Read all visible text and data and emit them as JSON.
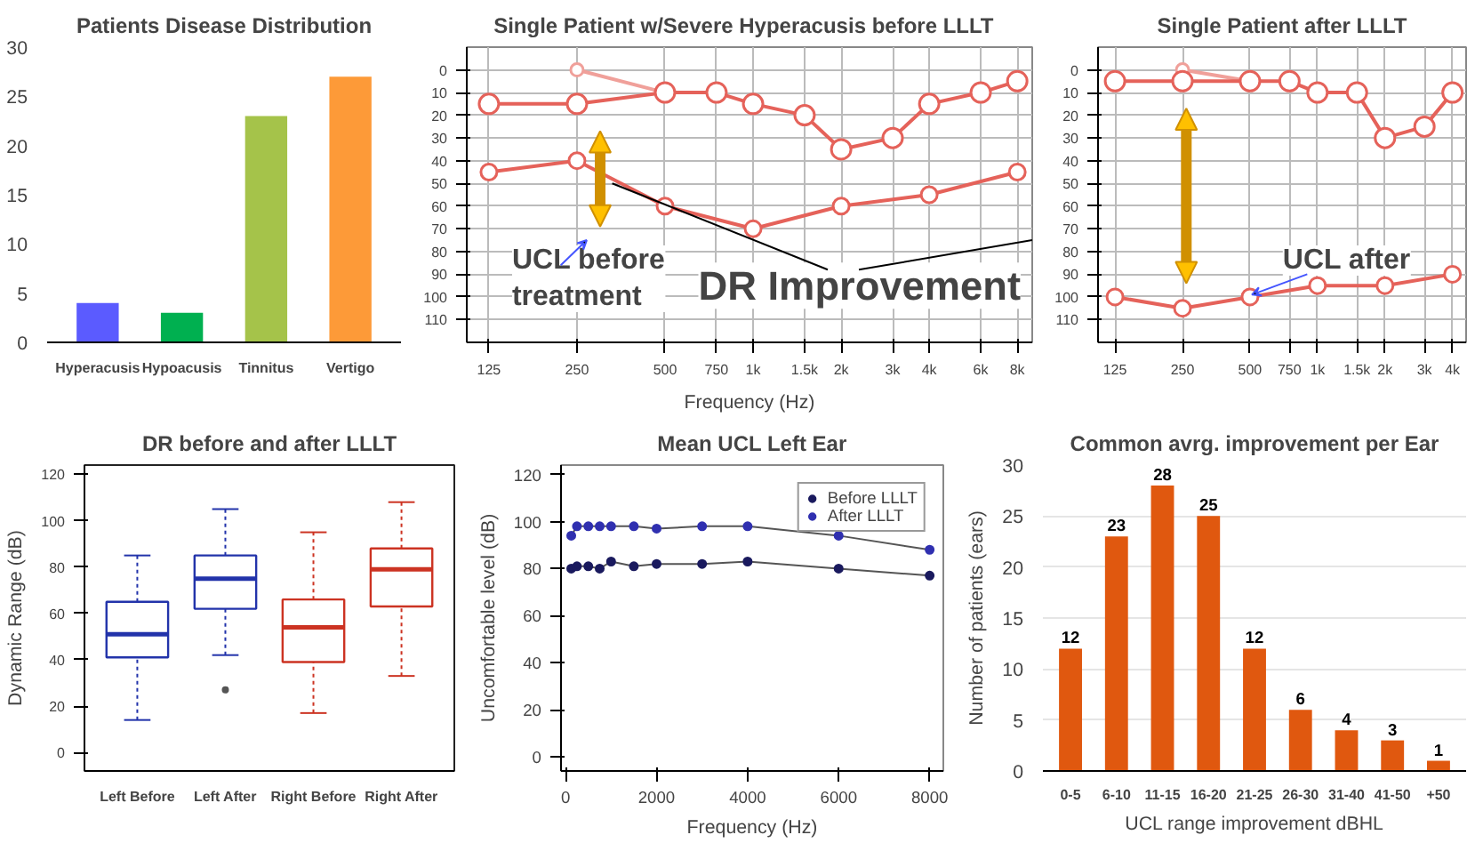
{
  "chart_data": [
    {
      "type": "bar",
      "title": "Patients Disease Distribution",
      "categories": [
        "Hyperacusis",
        "Hypoacusis",
        "Tinnitus",
        "Vertigo"
      ],
      "values": [
        4,
        3,
        23,
        27
      ],
      "colors": [
        "#5b5bff",
        "#00b050",
        "#a5c34a",
        "#fd9a38"
      ],
      "ylim": [
        0,
        30
      ],
      "yticks": [
        0,
        5,
        10,
        15,
        20,
        25,
        30
      ]
    },
    {
      "type": "line",
      "title": "Single Patient w/Severe  Hyperacusis  before LLLT",
      "xlabel": "Frequency (Hz)",
      "log": "x",
      "grid": true,
      "marker": "circle",
      "xlim": [
        105,
        9000
      ],
      "ylim": [
        120,
        -10
      ],
      "xticks": [
        125,
        250,
        500,
        750,
        {
          "value": 1000,
          "label": "1k"
        },
        {
          "value": 1500,
          "label": "1.5k"
        },
        {
          "value": 2000,
          "label": "2k"
        },
        {
          "value": 3000,
          "label": "3k"
        },
        {
          "value": 4000,
          "label": "4k"
        },
        {
          "value": 6000,
          "label": "6k"
        },
        {
          "value": 8000,
          "label": "8k"
        }
      ],
      "yticks": [
        0,
        10,
        20,
        30,
        40,
        50,
        60,
        70,
        80,
        90,
        100,
        110
      ],
      "series": [
        {
          "color": "#e5625a",
          "x": [
            125,
            250,
            500,
            750,
            1000,
            1500,
            2000,
            3000,
            4000,
            6000,
            8000
          ],
          "values": [
            15,
            15,
            10,
            10,
            15,
            20,
            35,
            30,
            15,
            10,
            5
          ]
        },
        {
          "color": "#e5625a",
          "x": [
            125,
            250,
            500,
            1000,
            2000,
            4000,
            8000
          ],
          "values": [
            45,
            40,
            60,
            70,
            60,
            55,
            45
          ]
        },
        {
          "color": "#f0a09a",
          "x": [
            250,
            500
          ],
          "values": [
            0,
            10
          ]
        }
      ],
      "annotations": [
        "UCL before treatment",
        "DR Improvement"
      ]
    },
    {
      "type": "line",
      "title": "Single Patient after LLLT",
      "log": "x",
      "grid": true,
      "marker": "circle",
      "xlim": [
        105,
        4600
      ],
      "ylim": [
        120,
        -10
      ],
      "xticks": [
        125,
        250,
        500,
        750,
        {
          "value": 1000,
          "label": "1k"
        },
        {
          "value": 1500,
          "label": "1.5k"
        },
        {
          "value": 2000,
          "label": "2k"
        },
        {
          "value": 3000,
          "label": "3k"
        },
        {
          "value": 4000,
          "label": "4k"
        }
      ],
      "yticks": [
        0,
        10,
        20,
        30,
        40,
        50,
        60,
        70,
        80,
        90,
        100,
        110
      ],
      "series": [
        {
          "color": "#e5625a",
          "x": [
            125,
            250,
            500,
            750,
            1000,
            1500,
            2000,
            3000,
            4000
          ],
          "values": [
            5,
            5,
            5,
            5,
            10,
            10,
            30,
            25,
            10
          ]
        },
        {
          "color": "#e5625a",
          "x": [
            125,
            250,
            500,
            1000,
            2000,
            4000
          ],
          "values": [
            100,
            105,
            100,
            95,
            95,
            90
          ]
        },
        {
          "color": "#f0a09a",
          "x": [
            250,
            500
          ],
          "values": [
            0,
            5
          ]
        }
      ],
      "annotations": [
        "UCL after"
      ]
    },
    {
      "type": "box",
      "title": "DR before and after LLLT",
      "ylabel": "Dynamic Range (dB)",
      "categories": [
        "Left Before",
        "Left After",
        "Right Before",
        "Right After"
      ],
      "colors": [
        "#2233aa",
        "#2233aa",
        "#cc3322",
        "#cc3322"
      ],
      "ylim": [
        -8,
        124
      ],
      "yticks": [
        0,
        20,
        40,
        60,
        80,
        100,
        120
      ],
      "boxes": [
        {
          "low": 14,
          "q1": 41,
          "median": 51,
          "q3": 65,
          "high": 85
        },
        {
          "low": 42,
          "q1": 62,
          "median": 75,
          "q3": 85,
          "high": 105,
          "outliers": [
            27
          ]
        },
        {
          "low": 17,
          "q1": 39,
          "median": 54,
          "q3": 66,
          "high": 95
        },
        {
          "low": 33,
          "q1": 63,
          "median": 79,
          "q3": 88,
          "high": 108
        }
      ]
    },
    {
      "type": "line",
      "title": "Mean UCL Left Ear",
      "xlabel": "Frequency (Hz)",
      "ylabel": "Uncomfortable level (dB)",
      "marker": "circle",
      "legend": "top right",
      "xlim": [
        -100,
        8300
      ],
      "ylim": [
        -6,
        124
      ],
      "xticks": [
        0,
        2000,
        4000,
        6000,
        8000
      ],
      "yticks": [
        0,
        20,
        40,
        60,
        80,
        100,
        120
      ],
      "series": [
        {
          "name": "Before LLLT",
          "color": "#1a1a5e",
          "x": [
            125,
            250,
            500,
            750,
            1000,
            1500,
            2000,
            3000,
            4000,
            6000,
            8000
          ],
          "values": [
            80,
            81,
            81,
            80,
            83,
            81,
            82,
            82,
            83,
            80,
            77
          ]
        },
        {
          "name": "After LLLT",
          "color": "#3030b0",
          "x": [
            125,
            250,
            500,
            750,
            1000,
            1500,
            2000,
            3000,
            4000,
            6000,
            8000
          ],
          "values": [
            94,
            98,
            98,
            98,
            98,
            98,
            97,
            98,
            98,
            94,
            88
          ]
        }
      ]
    },
    {
      "type": "bar",
      "title": "Common avrg. improvement per Ear",
      "xlabel": "UCL range improvement dBHL",
      "ylabel": "Number of patients (ears)",
      "categories": [
        "0-5",
        "6-10",
        "11-15",
        "16-20",
        "21-25",
        "26-30",
        "31-40",
        "41-50",
        "+50"
      ],
      "values": [
        12,
        23,
        28,
        25,
        12,
        6,
        4,
        3,
        1
      ],
      "color": "#e0580f",
      "data_labels": true,
      "grid": "y",
      "ylim": [
        0,
        30
      ],
      "yticks": [
        0,
        5,
        10,
        15,
        20,
        25,
        30
      ]
    }
  ]
}
